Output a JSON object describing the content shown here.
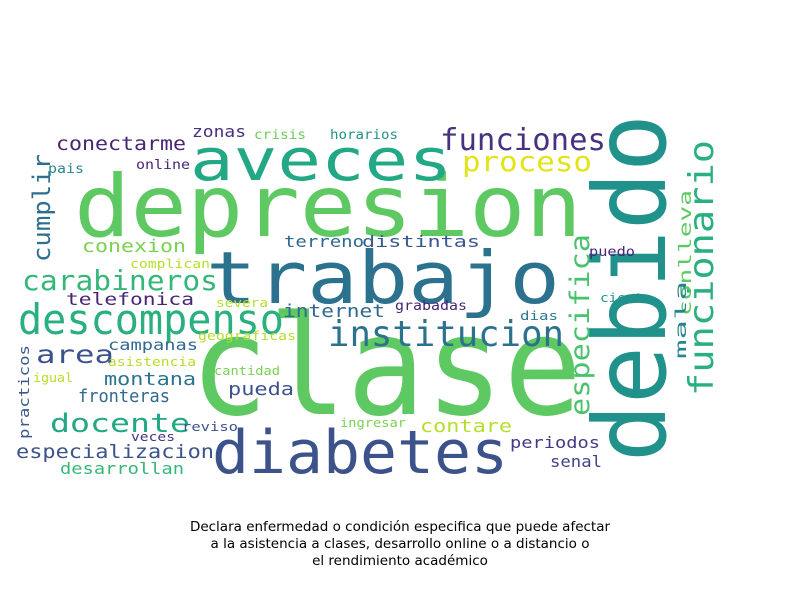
{
  "words": [
    {
      "text": "clase",
      "color": "#5ec962"
    },
    {
      "text": "depresion",
      "color": "#5ec962"
    },
    {
      "text": "debido",
      "color": "#21918c"
    },
    {
      "text": "trabajo",
      "color": "#2c728e"
    },
    {
      "text": "diabetes",
      "color": "#3b528b"
    },
    {
      "text": "aveces",
      "color": "#22a884"
    },
    {
      "text": "descompenso",
      "color": "#2ab07f"
    },
    {
      "text": "institucion",
      "color": "#2c728e"
    },
    {
      "text": "funcionario",
      "color": "#2ab07f"
    },
    {
      "text": "funciones",
      "color": "#46327e"
    },
    {
      "text": "proceso",
      "color": "#e0e418"
    },
    {
      "text": "carabineros",
      "color": "#35b779"
    },
    {
      "text": "especifica",
      "color": "#4ac16d"
    },
    {
      "text": "docente",
      "color": "#22a884"
    },
    {
      "text": "cumplir",
      "color": "#2e6e8e"
    },
    {
      "text": "area",
      "color": "#3b528b"
    },
    {
      "text": "conectarme",
      "color": "#482475"
    },
    {
      "text": "especializacion",
      "color": "#3b528b"
    },
    {
      "text": "conexion",
      "color": "#7ad151"
    },
    {
      "text": "telefonica",
      "color": "#482475"
    },
    {
      "text": "montana",
      "color": "#2c728e"
    },
    {
      "text": "fronteras",
      "color": "#31688e"
    },
    {
      "text": "internet",
      "color": "#31688e"
    },
    {
      "text": "pueda",
      "color": "#3b528b"
    },
    {
      "text": "periodos",
      "color": "#443983"
    },
    {
      "text": "contare",
      "color": "#b5de2b"
    },
    {
      "text": "desarrollan",
      "color": "#35b779"
    },
    {
      "text": "terreno",
      "color": "#31688e"
    },
    {
      "text": "distintas",
      "color": "#38598c"
    },
    {
      "text": "senal",
      "color": "#414487"
    },
    {
      "text": "campanas",
      "color": "#31688e"
    },
    {
      "text": "zonas",
      "color": "#46327e"
    },
    {
      "text": "conlleva",
      "color": "#5ec962"
    },
    {
      "text": "mala",
      "color": "#25858e"
    },
    {
      "text": "practicos",
      "color": "#38598c"
    },
    {
      "text": "crisis",
      "color": "#6ccd5a"
    },
    {
      "text": "horarios",
      "color": "#21918c"
    },
    {
      "text": "pais",
      "color": "#25858e"
    },
    {
      "text": "online",
      "color": "#482475"
    },
    {
      "text": "complican",
      "color": "#b5de2b"
    },
    {
      "text": "puedo",
      "color": "#482475"
    },
    {
      "text": "severa",
      "color": "#b5de2b"
    },
    {
      "text": "grabadas",
      "color": "#482475"
    },
    {
      "text": "cierta",
      "color": "#21918c"
    },
    {
      "text": "geograficas",
      "color": "#b5de2b"
    },
    {
      "text": "dias",
      "color": "#2a788e"
    },
    {
      "text": "asistencia",
      "color": "#b5de2b"
    },
    {
      "text": "cantidad",
      "color": "#7ad151"
    },
    {
      "text": "igual",
      "color": "#b5de2b"
    },
    {
      "text": "ingresar",
      "color": "#7ad151"
    },
    {
      "text": "reviso",
      "color": "#3b528b"
    },
    {
      "text": "veces",
      "color": "#46327e"
    }
  ],
  "caption": [
    "Declara enfermedad o condición especifica que puede afectar",
    "a la asistencia a clases, desarrollo online o a distancio o",
    "el rendimiento académico"
  ]
}
